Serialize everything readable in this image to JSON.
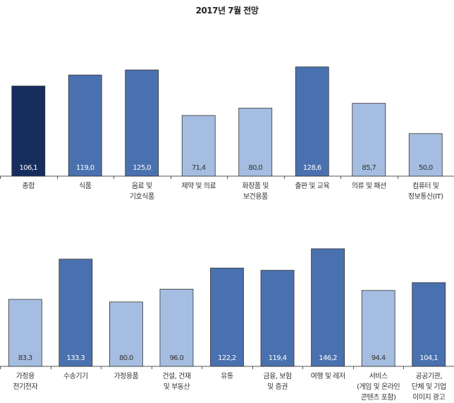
{
  "title": "2017년 7월 전망",
  "colors": {
    "highlight": "#172d5e",
    "above_100": "#4a71af",
    "below_100": "#a5bde0"
  },
  "chart_data": [
    {
      "type": "bar",
      "title": "2017년 7월 전망",
      "categories": [
        [
          "종합"
        ],
        [
          "식품"
        ],
        [
          "음료 및",
          "기호식품"
        ],
        [
          "제약 및 의료"
        ],
        [
          "화장품 및",
          "보건용품"
        ],
        [
          "출판 및 교육"
        ],
        [
          "의류 및 패션"
        ],
        [
          "컴퓨터 및",
          "정보통신(IT)"
        ]
      ],
      "values": [
        106.1,
        119.0,
        125.0,
        71.4,
        80.0,
        128.6,
        85.7,
        50.0
      ],
      "labels": [
        "106,1",
        "119,0",
        "125,0",
        "71,4",
        "80,0",
        "128,6",
        "85,7",
        "50,0"
      ],
      "grid": false
    },
    {
      "type": "bar",
      "categories": [
        [
          "가정용",
          "전기전자"
        ],
        [
          "수송기기"
        ],
        [
          "가정용품"
        ],
        [
          "건설, 건재",
          "및 부동산"
        ],
        [
          "유통"
        ],
        [
          "금융, 보험",
          "및 증권"
        ],
        [
          "여행 및 레저"
        ],
        [
          "서비스",
          "(게임 및 온라인",
          "콘텐츠 포함)"
        ],
        [
          "공공기관,",
          "단체 및 기업",
          "이미지 광고"
        ]
      ],
      "values": [
        83.3,
        133.3,
        80.0,
        96.0,
        122.2,
        119.4,
        146.2,
        94.4,
        104.1
      ],
      "labels": [
        "83.3",
        "133.3",
        "80.0",
        "96.0",
        "122,2",
        "119,4",
        "146,2",
        "94.4",
        "104,1"
      ],
      "grid": false
    }
  ]
}
